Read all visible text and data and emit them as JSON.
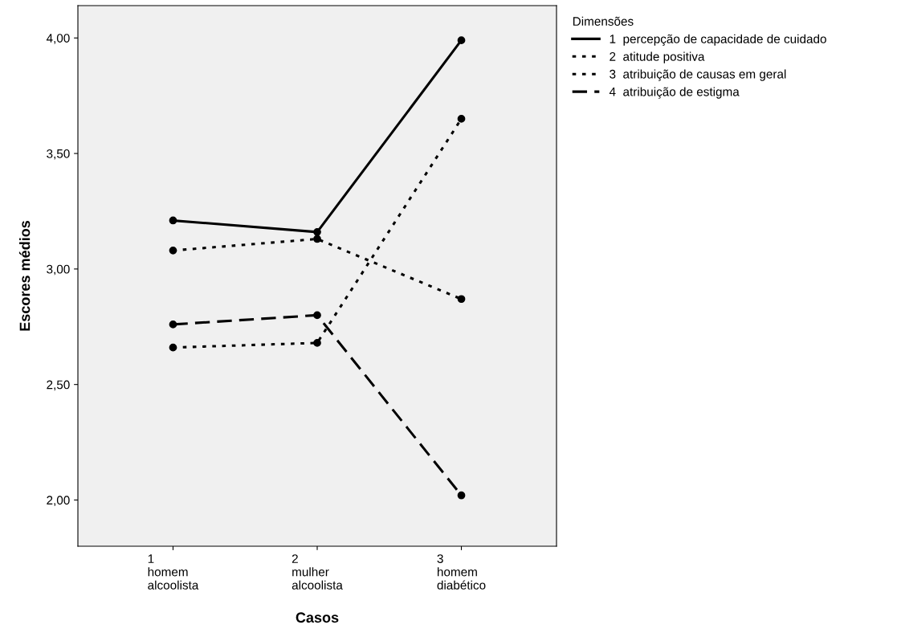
{
  "chart_data": {
    "type": "line",
    "xlabel": "Casos",
    "ylabel": "Escores médios",
    "legend_title": "Dimensões",
    "categories": [
      "1\nhomem\nalcoolista",
      "2\nmulher\nalcoolista",
      "3\nhomem\ndiabético"
    ],
    "series": [
      {
        "name": "1  percepção de capacidade de cuidado",
        "color": "#000000",
        "line_style": "solid",
        "values": [
          3.21,
          3.16,
          3.99
        ]
      },
      {
        "name": "2  atitude positiva",
        "color": "#000000",
        "line_style": "dotted",
        "values": [
          2.66,
          2.68,
          3.65
        ]
      },
      {
        "name": "3  atribuição de causas em geral",
        "color": "#000000",
        "line_style": "dotted",
        "values": [
          3.08,
          3.13,
          2.87
        ]
      },
      {
        "name": "4  atribuição de estigma",
        "color": "#000000",
        "line_style": "dashed",
        "values": [
          2.76,
          2.8,
          2.02
        ]
      }
    ],
    "ylim": [
      1.8,
      4.14
    ],
    "yticks": [
      {
        "value": 2.0,
        "label": "2,00"
      },
      {
        "value": 2.5,
        "label": "2,50"
      },
      {
        "value": 3.0,
        "label": "3,00"
      },
      {
        "value": 3.5,
        "label": "3,50"
      },
      {
        "value": 4.0,
        "label": "4,00"
      }
    ],
    "marker": "circle",
    "grid": false,
    "legend": "top right"
  }
}
